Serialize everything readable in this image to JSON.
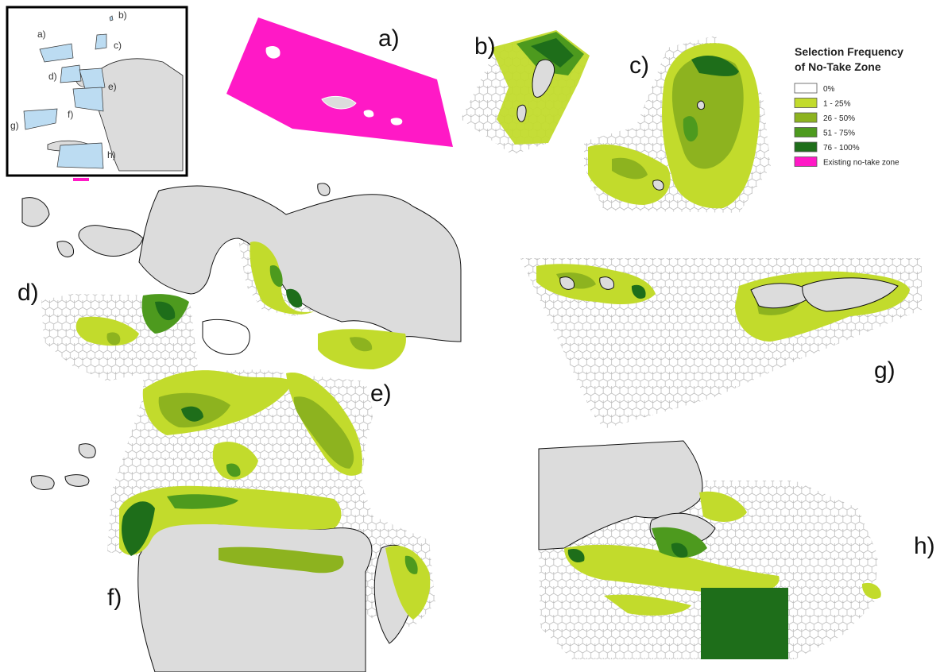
{
  "legend": {
    "title_line1": "Selection Frequency",
    "title_line2": "of No-Take Zone",
    "items": [
      {
        "label": "0%",
        "color": "#ffffff"
      },
      {
        "label": "1 - 25%",
        "color": "#c2db2c"
      },
      {
        "label": "26 - 50%",
        "color": "#8db31f"
      },
      {
        "label": "51 - 75%",
        "color": "#4d9a1e"
      },
      {
        "label": "76 - 100%",
        "color": "#1e6e1a"
      },
      {
        "label": "Existing no-take zone",
        "color": "#ff19c6"
      }
    ]
  },
  "panels": {
    "a": "a)",
    "b": "b)",
    "c": "c)",
    "d": "d)",
    "e": "e)",
    "f": "f)",
    "g": "g)",
    "h": "h)"
  },
  "locator": {
    "labels": {
      "a": "a)",
      "b": "b)",
      "c": "c)",
      "d": "d)",
      "e": "e)",
      "f": "f)",
      "g": "g)",
      "h": "h)"
    },
    "region_color": "#bcdcf2"
  },
  "colors": {
    "land": "#dcdcdc",
    "hex_grid": "#bdbdbd",
    "coast": "#111111"
  }
}
